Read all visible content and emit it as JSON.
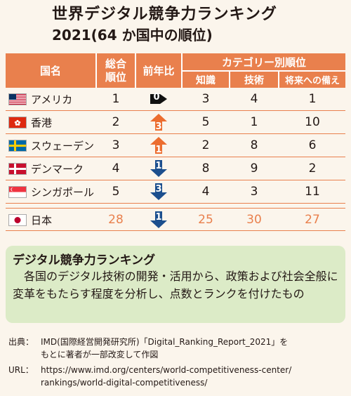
{
  "title_line1": "世界デジタル競争力ランキング",
  "title_line2": "2021(64 か国中の順位)",
  "headers": {
    "country": "国名",
    "overall": "総合\n順位",
    "change": "前年比",
    "category": "カテゴリー別順位",
    "knowledge": "知識",
    "technology": "技術",
    "future": "将来への備え"
  },
  "rows": [
    {
      "country": "アメリカ",
      "flag": "us-flag",
      "overall": "1",
      "change": "0",
      "dir": "none",
      "knowledge": "3",
      "technology": "4",
      "future": "1"
    },
    {
      "country": "香港",
      "flag": "hk-flag",
      "overall": "2",
      "change": "3",
      "dir": "up",
      "knowledge": "5",
      "technology": "1",
      "future": "10"
    },
    {
      "country": "スウェーデン",
      "flag": "se-flag",
      "overall": "3",
      "change": "1",
      "dir": "up",
      "knowledge": "2",
      "technology": "8",
      "future": "6"
    },
    {
      "country": "デンマーク",
      "flag": "dk-flag",
      "overall": "4",
      "change": "1",
      "dir": "down",
      "knowledge": "8",
      "technology": "9",
      "future": "2"
    },
    {
      "country": "シンガポール",
      "flag": "sg-flag",
      "overall": "5",
      "change": "3",
      "dir": "down",
      "knowledge": "4",
      "technology": "3",
      "future": "11"
    },
    {
      "country": "日本",
      "flag": "jp-flag",
      "overall": "28",
      "change": "1",
      "dir": "down",
      "knowledge": "25",
      "technology": "30",
      "future": "27"
    }
  ],
  "colors": {
    "up": "#ec6d2f",
    "down": "#1c4f8e",
    "none": "#111111",
    "accent": "#e9804d"
  },
  "definition": {
    "title": "デジタル競争力ランキング",
    "body": "各国のデジタル技術の開発・活用から、政策および社会全般に変革をもたらす程度を分析し、点数とランクを付けたもの"
  },
  "source": {
    "label1": "出典：",
    "line1": "IMD(国際経営開発研究所)「Digital_Ranking_Report_2021」を",
    "line2": "もとに著者が一部改変して作図",
    "label2": "URL：",
    "line3": "https://www.imd.org/centers/world-competitiveness-center/",
    "line4": "rankings/world-digital-competitiveness/"
  }
}
